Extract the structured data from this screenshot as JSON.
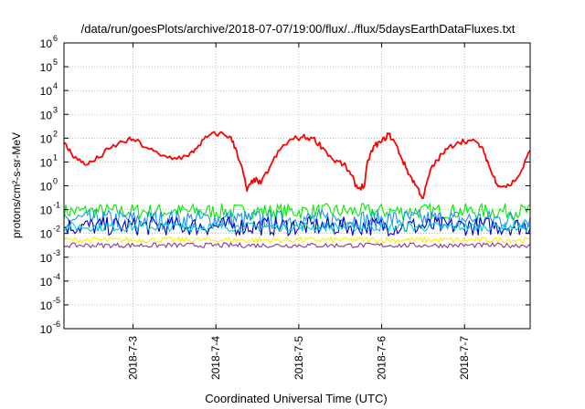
{
  "chart_data": {
    "type": "line",
    "title": "/data/run/goesPlots/archive/2018-07-07/19:00/flux/../flux/5daysEarthDataFluxes.txt",
    "xlabel": "Coordinated Universal Time (UTC)",
    "ylabel": "protons/cm²-s-sr-MeV",
    "yscale": "log",
    "ylim": [
      1e-06,
      1000000.0
    ],
    "yticks": [
      {
        "value": 1e-06,
        "label": "10",
        "exp": "-6"
      },
      {
        "value": 1e-05,
        "label": "10",
        "exp": "-5"
      },
      {
        "value": 0.0001,
        "label": "10",
        "exp": "-4"
      },
      {
        "value": 0.001,
        "label": "10",
        "exp": "-3"
      },
      {
        "value": 0.01,
        "label": "10",
        "exp": "-2"
      },
      {
        "value": 0.1,
        "label": "10",
        "exp": "-1"
      },
      {
        "value": 1,
        "label": "10",
        "exp": "0"
      },
      {
        "value": 10.0,
        "label": "10",
        "exp": "1"
      },
      {
        "value": 100.0,
        "label": "10",
        "exp": "2"
      },
      {
        "value": 1000.0,
        "label": "10",
        "exp": "3"
      },
      {
        "value": 10000.0,
        "label": "10",
        "exp": "4"
      },
      {
        "value": 100000.0,
        "label": "10",
        "exp": "5"
      },
      {
        "value": 1000000.0,
        "label": "10",
        "exp": "6"
      }
    ],
    "xlim": [
      "2018-07-02T04:00",
      "2018-07-07T19:00"
    ],
    "xticks": [
      {
        "value": "2018-07-03T00:00",
        "label": "2018-7-3"
      },
      {
        "value": "2018-07-04T00:00",
        "label": "2018-7-4"
      },
      {
        "value": "2018-07-05T00:00",
        "label": "2018-7-5"
      },
      {
        "value": "2018-07-06T00:00",
        "label": "2018-7-6"
      },
      {
        "value": "2018-07-07T00:00",
        "label": "2018-7-7"
      }
    ],
    "grid": true,
    "series": [
      {
        "color": "#ff0000",
        "x": [
          "2018-07-02T04:00",
          "2018-07-02T06:00",
          "2018-07-02T08:00",
          "2018-07-02T11:00",
          "2018-07-02T14:00",
          "2018-07-02T17:00",
          "2018-07-02T21:00",
          "2018-07-03T00:00",
          "2018-07-03T04:00",
          "2018-07-03T08:00",
          "2018-07-03T12:00",
          "2018-07-03T16:00",
          "2018-07-03T19:00",
          "2018-07-03T22:00",
          "2018-07-04T01:00",
          "2018-07-04T04:00",
          "2018-07-04T06:00",
          "2018-07-04T08:00",
          "2018-07-04T09:00",
          "2018-07-04T11:00",
          "2018-07-04T13:00",
          "2018-07-04T16:00",
          "2018-07-04T19:00",
          "2018-07-04T22:00",
          "2018-07-05T01:00",
          "2018-07-05T04:00",
          "2018-07-05T07:00",
          "2018-07-05T10:00",
          "2018-07-05T13:00",
          "2018-07-05T15:00",
          "2018-07-05T17:00",
          "2018-07-05T19:00",
          "2018-07-05T20:00",
          "2018-07-05T22:00",
          "2018-07-06T00:00",
          "2018-07-06T02:00",
          "2018-07-06T04:00",
          "2018-07-06T06:00",
          "2018-07-06T08:00",
          "2018-07-06T10:00",
          "2018-07-06T12:00",
          "2018-07-06T14:00",
          "2018-07-06T16:00",
          "2018-07-06T19:00",
          "2018-07-06T22:00",
          "2018-07-07T01:00",
          "2018-07-07T04:00",
          "2018-07-07T06:00",
          "2018-07-07T08:00",
          "2018-07-07T10:00",
          "2018-07-07T13:00",
          "2018-07-07T16:00",
          "2018-07-07T19:00"
        ],
        "y": [
          60,
          25,
          12,
          8,
          15,
          35,
          70,
          90,
          40,
          18,
          15,
          17,
          50,
          130,
          160,
          120,
          30,
          3,
          0.6,
          2,
          1.2,
          8,
          40,
          90,
          110,
          100,
          40,
          12,
          8,
          3,
          0.8,
          1,
          12,
          50,
          70,
          150,
          60,
          12,
          3,
          1,
          0.3,
          4,
          12,
          35,
          70,
          80,
          60,
          20,
          3,
          1,
          1,
          3,
          30
        ]
      }
    ],
    "bands": [
      {
        "color": "#00ee00",
        "low": 0.04,
        "high": 0.18
      },
      {
        "color": "#1e90ff",
        "low": 0.015,
        "high": 0.1
      },
      {
        "color": "#0000cd",
        "low": 0.008,
        "high": 0.05
      },
      {
        "color": "#00cccc",
        "low": 0.012,
        "high": 0.03
      },
      {
        "color": "#ffee00",
        "low": 0.004,
        "high": 0.007
      },
      {
        "color": "#8b3a8b",
        "low": 0.0025,
        "high": 0.004
      }
    ]
  }
}
